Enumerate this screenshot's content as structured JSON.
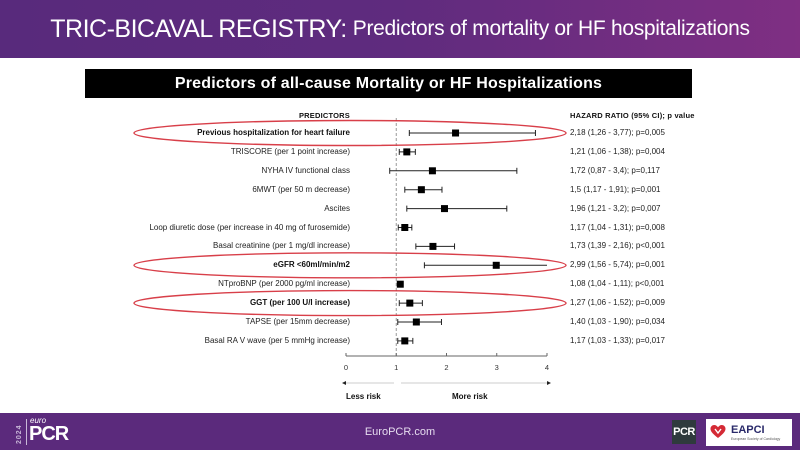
{
  "header": {
    "title_main": "TRIC-BICAVAL REGISTRY:",
    "title_rest": "Predictors of mortality or HF hospitalizations"
  },
  "subtitle": "Predictors of all-cause Mortality or HF Hospitalizations",
  "columns": {
    "predictors": "PREDICTORS",
    "hazard": "HAZARD RATIO (95% CI); p value"
  },
  "chart_data": {
    "type": "forest",
    "title": "Predictors of all-cause Mortality or HF Hospitalizations",
    "xlim": [
      0,
      4
    ],
    "xticks": [
      "0",
      "1",
      "2",
      "3",
      "4"
    ],
    "reference_line": 1,
    "x_annotations": {
      "left": "Less risk",
      "right": "More risk"
    },
    "rows": [
      {
        "label": "Previous hospitalization for heart failure",
        "hr": 2.18,
        "lo": 1.26,
        "hi": 3.77,
        "text": "2,18 (1,26 - 3,77); p=0,005",
        "bold": true,
        "highlight": true
      },
      {
        "label": "TRISCORE (per 1 point increase)",
        "hr": 1.21,
        "lo": 1.06,
        "hi": 1.38,
        "text": "1,21 (1,06 - 1,38); p=0,004",
        "bold": false,
        "highlight": false
      },
      {
        "label": "NYHA IV functional class",
        "hr": 1.72,
        "lo": 0.87,
        "hi": 3.4,
        "text": "1,72 (0,87 - 3,4); p=0,117",
        "bold": false,
        "highlight": false
      },
      {
        "label": "6MWT (per 50 m decrease)",
        "hr": 1.5,
        "lo": 1.17,
        "hi": 1.91,
        "text": "1,5 (1,17 - 1,91); p=0,001",
        "bold": false,
        "highlight": false
      },
      {
        "label": "Ascites",
        "hr": 1.96,
        "lo": 1.21,
        "hi": 3.2,
        "text": "1,96 (1,21 - 3,2); p=0,007",
        "bold": false,
        "highlight": false
      },
      {
        "label": "Loop diuretic dose (per increase in 40 mg of furosemide)",
        "hr": 1.17,
        "lo": 1.04,
        "hi": 1.31,
        "text": "1,17 (1,04 - 1,31); p=0,008",
        "bold": false,
        "highlight": false
      },
      {
        "label": "Basal creatinine (per 1 mg/dl increase)",
        "hr": 1.73,
        "lo": 1.39,
        "hi": 2.16,
        "text": "1,73 (1,39 - 2,16); p<0,001",
        "bold": false,
        "highlight": false
      },
      {
        "label": "eGFR <60ml/min/m2",
        "hr": 2.99,
        "lo": 1.56,
        "hi": 5.74,
        "text": "2,99 (1,56 - 5,74); p=0,001",
        "bold": true,
        "highlight": true
      },
      {
        "label": "NTproBNP (per 2000 pg/ml increase)",
        "hr": 1.08,
        "lo": 1.04,
        "hi": 1.11,
        "text": "1,08 (1,04 - 1,11); p<0,001",
        "bold": false,
        "highlight": false
      },
      {
        "label": "GGT (per 100 U/l increase)",
        "hr": 1.27,
        "lo": 1.06,
        "hi": 1.52,
        "text": "1,27 (1,06 - 1,52); p=0,009",
        "bold": true,
        "highlight": true
      },
      {
        "label": "TAPSE (per 15mm decrease)",
        "hr": 1.4,
        "lo": 1.03,
        "hi": 1.9,
        "text": "1,40 (1,03 - 1,90); p=0,034",
        "bold": false,
        "highlight": false
      },
      {
        "label": "Basal RA V wave (per 5 mmHg increase)",
        "hr": 1.17,
        "lo": 1.03,
        "hi": 1.33,
        "text": "1,17 (1,03 - 1,33); p=0,017",
        "bold": false,
        "highlight": false
      }
    ]
  },
  "colors": {
    "highlight": "#d42a35",
    "header_start": "#582a7c",
    "header_end": "#7f2f83",
    "footer": "#5b2a7c"
  },
  "footer": {
    "url": "EuroPCR.com",
    "logo_year": "2024",
    "logo_euro": "euro",
    "logo_pcr": "PCR",
    "pcr_badge": "PCR",
    "eapci": "EAPCI",
    "eapci_sub": "European Society of Cardiology"
  }
}
